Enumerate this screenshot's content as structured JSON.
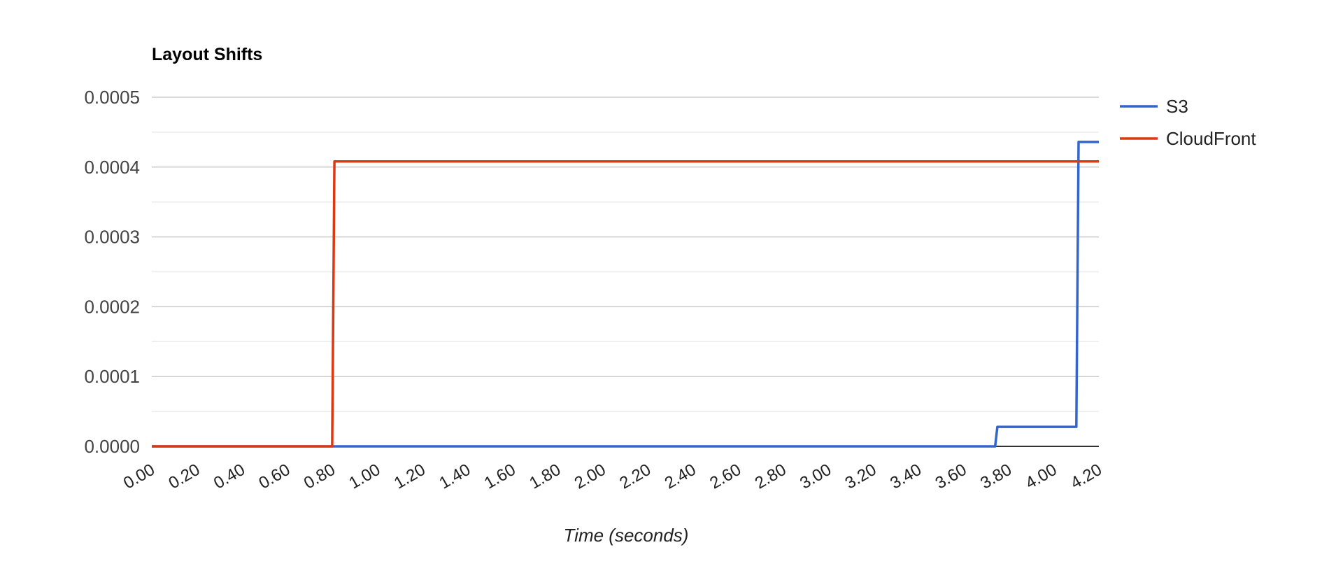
{
  "chart_data": {
    "type": "line",
    "title": "Layout Shifts",
    "xlabel": "Time (seconds)",
    "ylabel": "",
    "xlim": [
      0,
      4.2
    ],
    "ylim": [
      0,
      0.0005
    ],
    "x_ticks": [
      "0.00",
      "0.20",
      "0.40",
      "0.60",
      "0.80",
      "1.00",
      "1.20",
      "1.40",
      "1.60",
      "1.80",
      "2.00",
      "2.20",
      "2.40",
      "2.60",
      "2.80",
      "3.00",
      "3.20",
      "3.40",
      "3.60",
      "3.80",
      "4.00",
      "4.20"
    ],
    "y_ticks": [
      "0.0000",
      "0.0001",
      "0.0002",
      "0.0003",
      "0.0004",
      "0.0005"
    ],
    "grid": true,
    "legend_position": "right",
    "series": [
      {
        "name": "S3",
        "color": "#3366cc",
        "points": [
          [
            0,
            0
          ],
          [
            3.74,
            0
          ],
          [
            3.75,
            2.8e-05
          ],
          [
            4.1,
            2.8e-05
          ],
          [
            4.11,
            0.000436
          ],
          [
            4.2,
            0.000436
          ]
        ]
      },
      {
        "name": "CloudFront",
        "color": "#dc3912",
        "points": [
          [
            0,
            0
          ],
          [
            0.8,
            0
          ],
          [
            0.81,
            0.000408
          ],
          [
            4.2,
            0.000408
          ]
        ]
      }
    ]
  }
}
